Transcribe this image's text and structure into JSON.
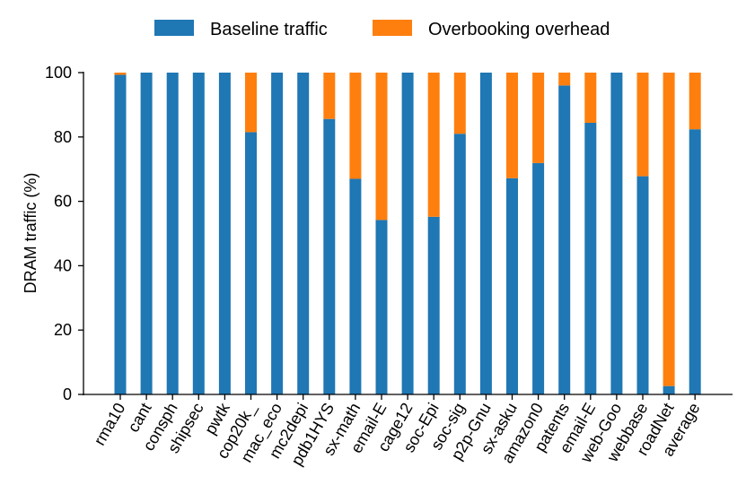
{
  "colors": {
    "baseline": "#1f77b4",
    "overhead": "#ff7f0e"
  },
  "chart_data": {
    "type": "bar",
    "stacked": true,
    "title": "",
    "xlabel": "",
    "ylabel": "DRAM traffic (%)",
    "ylim": [
      0,
      100
    ],
    "yticks": [
      "0",
      "20",
      "40",
      "60",
      "80",
      "100"
    ],
    "legend_position": "top",
    "categories": [
      "rma10",
      "cant",
      "consph",
      "shipsec",
      "pwtk",
      "cop20k_",
      "mac_eco",
      "mc2depi",
      "pdb1HYS",
      "sx-math",
      "email-E",
      "cage12",
      "soc-Epi",
      "soc-sig",
      "p2p-Gnu",
      "sx-asku",
      "amazon0",
      "patents",
      "email-E",
      "web-Goo",
      "webbase",
      "roadNet",
      "average"
    ],
    "series": [
      {
        "name": "Baseline traffic",
        "values": [
          99.3,
          100,
          100,
          100,
          100,
          81.5,
          100,
          100,
          85.6,
          67,
          54.2,
          100,
          55.2,
          81,
          100,
          67.2,
          71.9,
          96,
          84.4,
          100,
          67.8,
          2.6,
          82.4
        ]
      },
      {
        "name": "Overbooking overhead",
        "values": [
          0.7,
          0,
          0,
          0,
          0,
          18.5,
          0,
          0,
          14.4,
          33,
          45.8,
          0,
          44.8,
          19,
          0,
          32.8,
          28.1,
          4,
          15.6,
          0,
          32.2,
          97.4,
          17.6
        ]
      }
    ]
  }
}
